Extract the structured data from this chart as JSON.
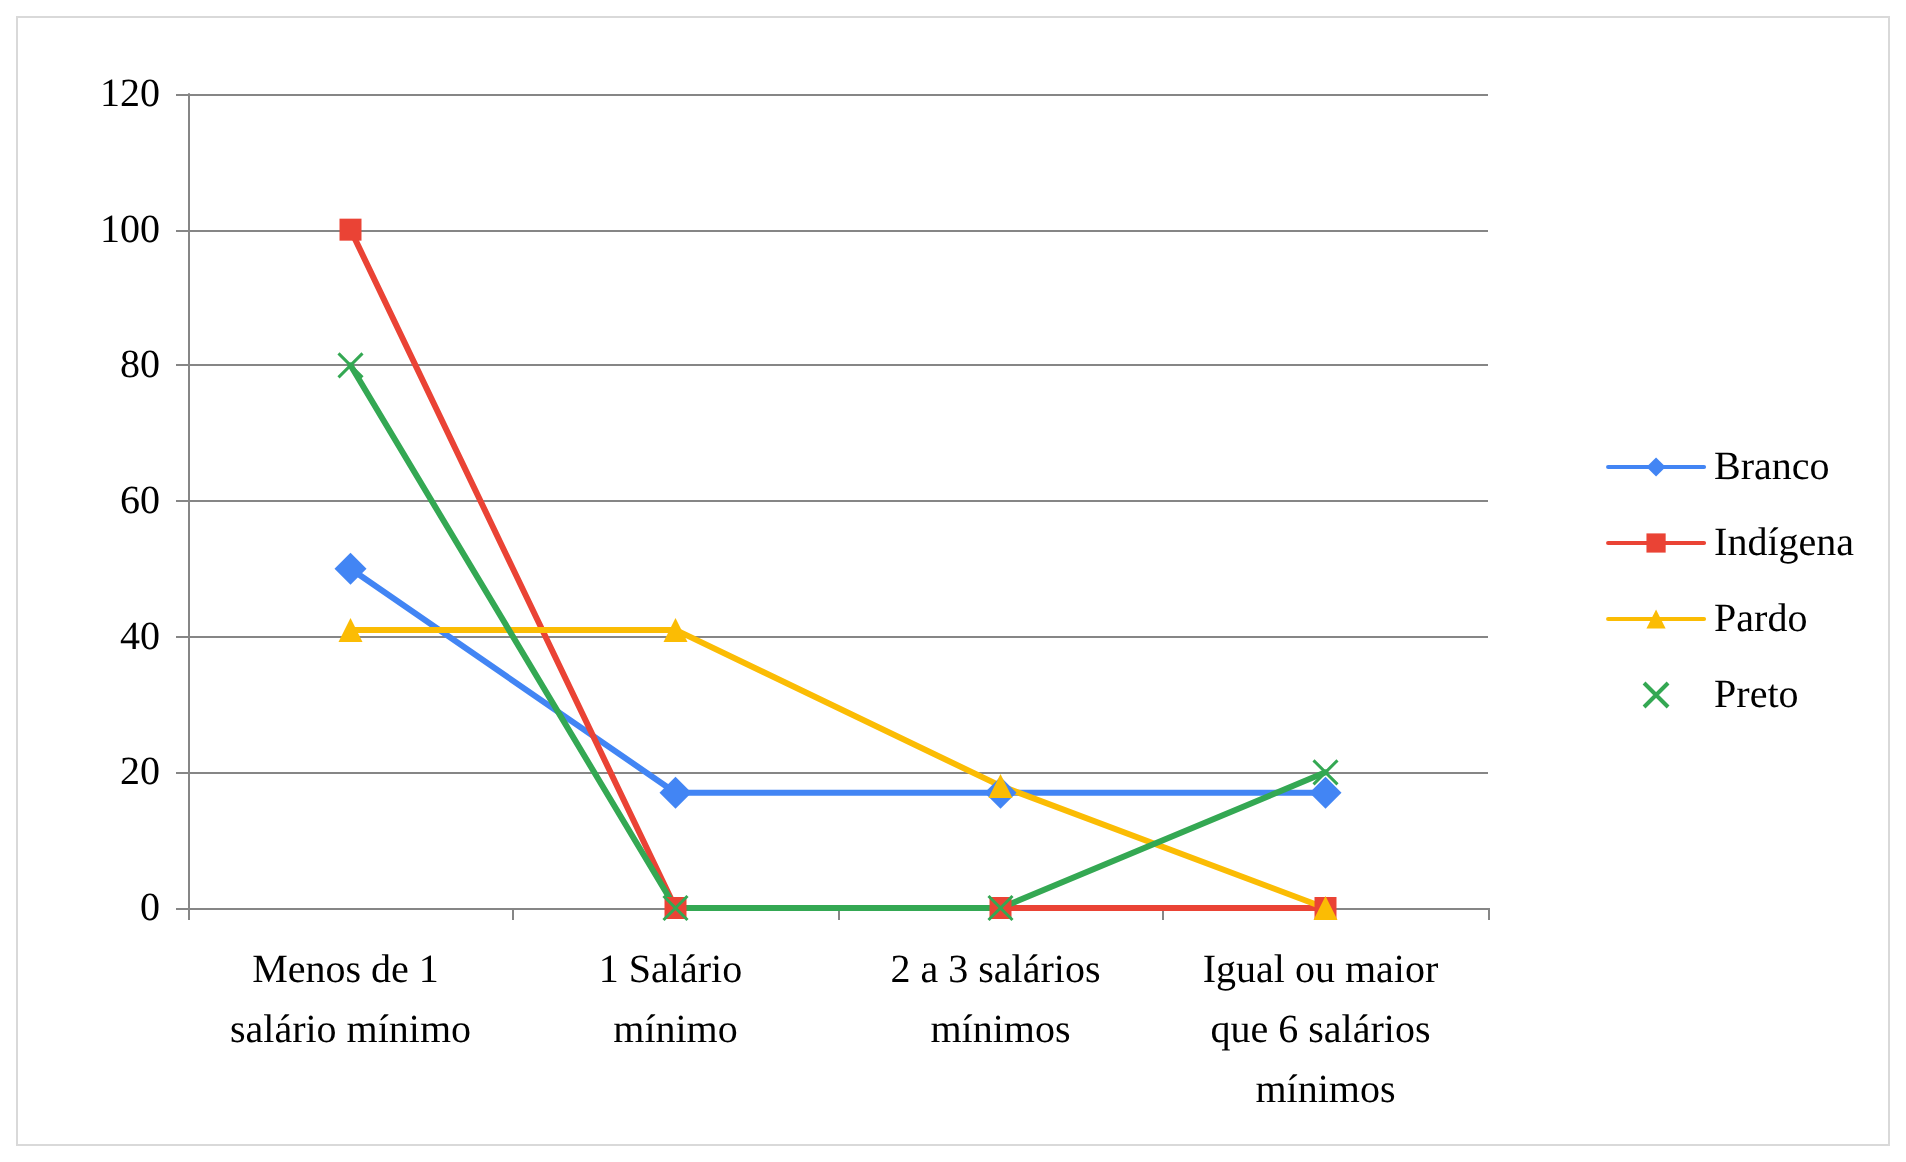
{
  "chart_data": {
    "type": "line",
    "categories": [
      "Menos de 1 salário mínimo",
      "1 Salário mínimo",
      "2 a 3 salários mínimos",
      "Igual ou maior que 6 salários mínimos"
    ],
    "series": [
      {
        "name": "Branco",
        "color": "#4285f4",
        "marker": "diamond",
        "values": [
          50,
          17,
          17,
          17
        ]
      },
      {
        "name": "Indígena",
        "color": "#ea4335",
        "marker": "square",
        "values": [
          100,
          0,
          0,
          0
        ]
      },
      {
        "name": "Pardo",
        "color": "#fbbc04",
        "marker": "triangle",
        "values": [
          41,
          41,
          18,
          0
        ]
      },
      {
        "name": "Preto",
        "color": "#34a853",
        "marker": "cross",
        "values": [
          80,
          0,
          0,
          20
        ]
      }
    ],
    "ylim": [
      0,
      120
    ],
    "yticks": [
      0,
      20,
      40,
      60,
      80,
      100,
      120
    ],
    "grid": "y",
    "legend": "right",
    "line_style": "solid"
  }
}
